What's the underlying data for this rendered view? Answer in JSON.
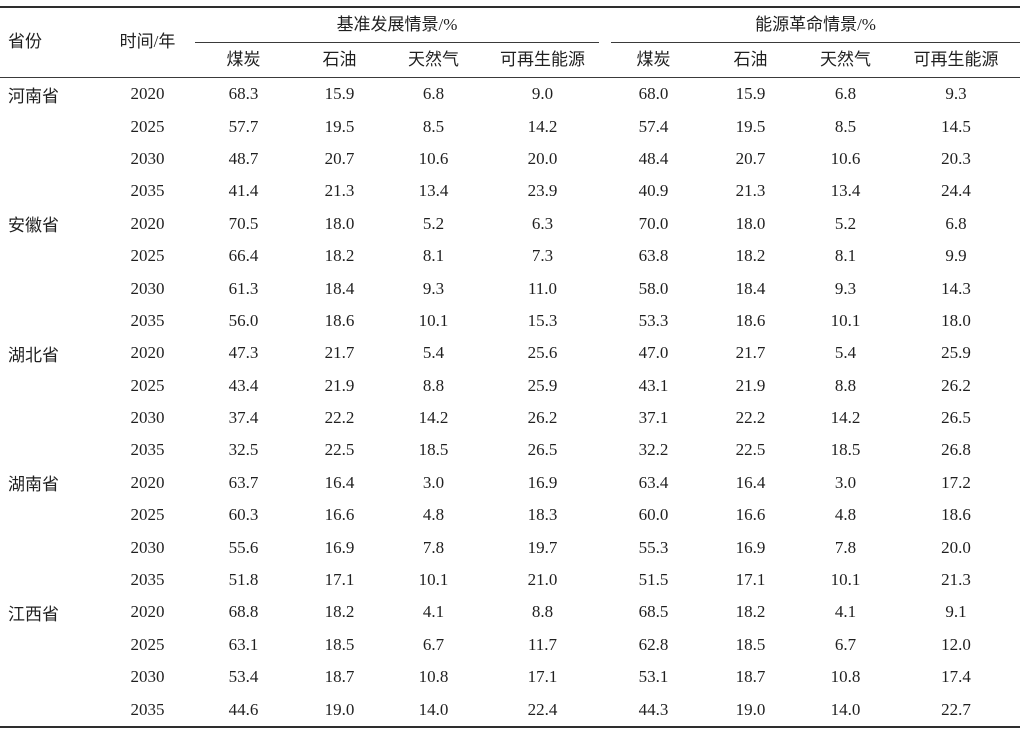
{
  "table": {
    "headers": {
      "province": "省份",
      "year": "时间/年",
      "baseline_group": "基准发展情景/%",
      "revolution_group": "能源革命情景/%",
      "subcols": [
        "煤炭",
        "石油",
        "天然气",
        "可再生能源"
      ]
    },
    "rows": [
      {
        "province": "河南省",
        "year": "2020",
        "base": [
          "68.3",
          "15.9",
          "6.8",
          "9.0"
        ],
        "rev": [
          "68.0",
          "15.9",
          "6.8",
          "9.3"
        ]
      },
      {
        "province": "",
        "year": "2025",
        "base": [
          "57.7",
          "19.5",
          "8.5",
          "14.2"
        ],
        "rev": [
          "57.4",
          "19.5",
          "8.5",
          "14.5"
        ]
      },
      {
        "province": "",
        "year": "2030",
        "base": [
          "48.7",
          "20.7",
          "10.6",
          "20.0"
        ],
        "rev": [
          "48.4",
          "20.7",
          "10.6",
          "20.3"
        ]
      },
      {
        "province": "",
        "year": "2035",
        "base": [
          "41.4",
          "21.3",
          "13.4",
          "23.9"
        ],
        "rev": [
          "40.9",
          "21.3",
          "13.4",
          "24.4"
        ]
      },
      {
        "province": "安徽省",
        "year": "2020",
        "base": [
          "70.5",
          "18.0",
          "5.2",
          "6.3"
        ],
        "rev": [
          "70.0",
          "18.0",
          "5.2",
          "6.8"
        ]
      },
      {
        "province": "",
        "year": "2025",
        "base": [
          "66.4",
          "18.2",
          "8.1",
          "7.3"
        ],
        "rev": [
          "63.8",
          "18.2",
          "8.1",
          "9.9"
        ]
      },
      {
        "province": "",
        "year": "2030",
        "base": [
          "61.3",
          "18.4",
          "9.3",
          "11.0"
        ],
        "rev": [
          "58.0",
          "18.4",
          "9.3",
          "14.3"
        ]
      },
      {
        "province": "",
        "year": "2035",
        "base": [
          "56.0",
          "18.6",
          "10.1",
          "15.3"
        ],
        "rev": [
          "53.3",
          "18.6",
          "10.1",
          "18.0"
        ]
      },
      {
        "province": "湖北省",
        "year": "2020",
        "base": [
          "47.3",
          "21.7",
          "5.4",
          "25.6"
        ],
        "rev": [
          "47.0",
          "21.7",
          "5.4",
          "25.9"
        ]
      },
      {
        "province": "",
        "year": "2025",
        "base": [
          "43.4",
          "21.9",
          "8.8",
          "25.9"
        ],
        "rev": [
          "43.1",
          "21.9",
          "8.8",
          "26.2"
        ]
      },
      {
        "province": "",
        "year": "2030",
        "base": [
          "37.4",
          "22.2",
          "14.2",
          "26.2"
        ],
        "rev": [
          "37.1",
          "22.2",
          "14.2",
          "26.5"
        ]
      },
      {
        "province": "",
        "year": "2035",
        "base": [
          "32.5",
          "22.5",
          "18.5",
          "26.5"
        ],
        "rev": [
          "32.2",
          "22.5",
          "18.5",
          "26.8"
        ]
      },
      {
        "province": "湖南省",
        "year": "2020",
        "base": [
          "63.7",
          "16.4",
          "3.0",
          "16.9"
        ],
        "rev": [
          "63.4",
          "16.4",
          "3.0",
          "17.2"
        ]
      },
      {
        "province": "",
        "year": "2025",
        "base": [
          "60.3",
          "16.6",
          "4.8",
          "18.3"
        ],
        "rev": [
          "60.0",
          "16.6",
          "4.8",
          "18.6"
        ]
      },
      {
        "province": "",
        "year": "2030",
        "base": [
          "55.6",
          "16.9",
          "7.8",
          "19.7"
        ],
        "rev": [
          "55.3",
          "16.9",
          "7.8",
          "20.0"
        ]
      },
      {
        "province": "",
        "year": "2035",
        "base": [
          "51.8",
          "17.1",
          "10.1",
          "21.0"
        ],
        "rev": [
          "51.5",
          "17.1",
          "10.1",
          "21.3"
        ]
      },
      {
        "province": "江西省",
        "year": "2020",
        "base": [
          "68.8",
          "18.2",
          "4.1",
          "8.8"
        ],
        "rev": [
          "68.5",
          "18.2",
          "4.1",
          "9.1"
        ]
      },
      {
        "province": "",
        "year": "2025",
        "base": [
          "63.1",
          "18.5",
          "6.7",
          "11.7"
        ],
        "rev": [
          "62.8",
          "18.5",
          "6.7",
          "12.0"
        ]
      },
      {
        "province": "",
        "year": "2030",
        "base": [
          "53.4",
          "18.7",
          "10.8",
          "17.1"
        ],
        "rev": [
          "53.1",
          "18.7",
          "10.8",
          "17.4"
        ]
      },
      {
        "province": "",
        "year": "2035",
        "base": [
          "44.6",
          "19.0",
          "14.0",
          "22.4"
        ],
        "rev": [
          "44.3",
          "19.0",
          "14.0",
          "22.7"
        ]
      }
    ],
    "line_color": "#2e2e2e",
    "rule_color": "#3a3a3a",
    "text_color": "#1f1f1f"
  }
}
